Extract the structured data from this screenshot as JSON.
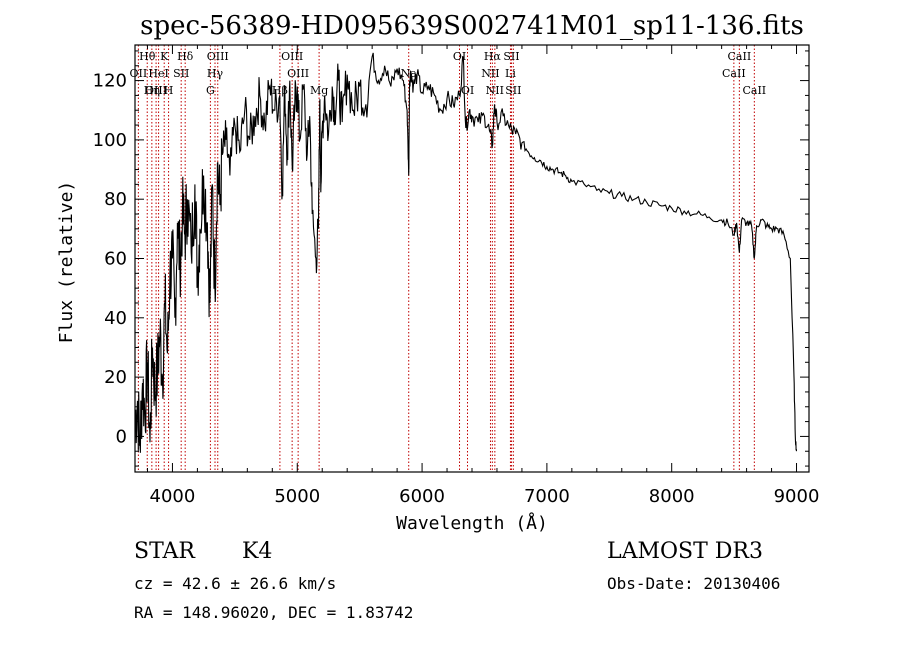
{
  "chart_data": {
    "type": "line",
    "title": "spec-56389-HD095639S002741M01_sp11-136.fits",
    "xlabel": "Wavelength (Å)",
    "ylabel": "Flux (relative)",
    "xlim": [
      3700,
      9100
    ],
    "ylim": [
      -12,
      132
    ],
    "xticks": [
      4000,
      5000,
      6000,
      7000,
      8000,
      9000
    ],
    "yticks": [
      0,
      20,
      40,
      60,
      80,
      100,
      120
    ],
    "series": [
      {
        "name": "flux",
        "x": [
          3700,
          3720,
          3740,
          3760,
          3780,
          3800,
          3820,
          3840,
          3860,
          3880,
          3900,
          3920,
          3940,
          3960,
          3980,
          4000,
          4020,
          4040,
          4060,
          4080,
          4100,
          4120,
          4150,
          4180,
          4200,
          4220,
          4250,
          4280,
          4300,
          4320,
          4340,
          4360,
          4380,
          4400,
          4430,
          4460,
          4500,
          4540,
          4580,
          4620,
          4660,
          4700,
          4740,
          4780,
          4820,
          4860,
          4880,
          4900,
          4920,
          4940,
          4960,
          4980,
          5000,
          5020,
          5050,
          5080,
          5100,
          5120,
          5150,
          5170,
          5180,
          5190,
          5200,
          5220,
          5250,
          5280,
          5300,
          5330,
          5360,
          5400,
          5450,
          5500,
          5550,
          5600,
          5650,
          5700,
          5750,
          5800,
          5850,
          5880,
          5893,
          5900,
          5910,
          5930,
          5960,
          6000,
          6050,
          6100,
          6150,
          6200,
          6250,
          6300,
          6330,
          6350,
          6380,
          6400,
          6450,
          6500,
          6540,
          6563,
          6580,
          6600,
          6650,
          6700,
          6750,
          6800,
          6850,
          6900,
          6950,
          7000,
          7050,
          7100,
          7150,
          7200,
          7300,
          7400,
          7500,
          7600,
          7700,
          7800,
          7900,
          8000,
          8100,
          8200,
          8300,
          8400,
          8450,
          8498,
          8520,
          8542,
          8560,
          8600,
          8640,
          8662,
          8680,
          8720,
          8760,
          8800,
          8850,
          8900,
          8950,
          8980,
          8990,
          9000
        ],
        "values": [
          5,
          12,
          -3,
          18,
          8,
          25,
          -2,
          30,
          15,
          22,
          35,
          20,
          45,
          28,
          55,
          60,
          40,
          72,
          58,
          75,
          68,
          80,
          62,
          85,
          55,
          70,
          88,
          72,
          45,
          85,
          50,
          92,
          78,
          95,
          100,
          88,
          105,
          96,
          110,
          100,
          108,
          115,
          105,
          118,
          110,
          115,
          82,
          118,
          95,
          120,
          90,
          112,
          118,
          100,
          118,
          95,
          108,
          75,
          60,
          70,
          112,
          85,
          104,
          115,
          102,
          118,
          110,
          120,
          106,
          122,
          110,
          118,
          112,
          128,
          120,
          125,
          118,
          124,
          120,
          110,
          88,
          120,
          123,
          118,
          122,
          116,
          118,
          115,
          110,
          114,
          112,
          115,
          128,
          104,
          110,
          108,
          106,
          108,
          103,
          98,
          112,
          106,
          108,
          104,
          102,
          99,
          96,
          94,
          93,
          91,
          90,
          89,
          88,
          86,
          85,
          83,
          82,
          81,
          80,
          79,
          78,
          77,
          76,
          75,
          74,
          73,
          72,
          68,
          72,
          62,
          73,
          72,
          71,
          60,
          71,
          73,
          71,
          70,
          70,
          68,
          60,
          20,
          0,
          -5
        ]
      }
    ],
    "spectral_lines": [
      {
        "label": "Hθ",
        "x": 3798,
        "row": 0
      },
      {
        "label": "OII",
        "x": 3727,
        "row": 1
      },
      {
        "label": "OIII",
        "x": 3869,
        "row": 2
      },
      {
        "label": "K",
        "x": 3934,
        "row": 0
      },
      {
        "label": "HeI",
        "x": 3889,
        "row": 1
      },
      {
        "label": "Hη",
        "x": 3835,
        "row": 2
      },
      {
        "label": "SII",
        "x": 4070,
        "row": 1
      },
      {
        "label": "H",
        "x": 3969,
        "row": 2
      },
      {
        "label": "Hδ",
        "x": 4102,
        "row": 0
      },
      {
        "label": "OIII",
        "x": 4363,
        "row": 0
      },
      {
        "label": "Hγ",
        "x": 4341,
        "row": 1
      },
      {
        "label": "G",
        "x": 4304,
        "row": 2
      },
      {
        "label": "OIII",
        "x": 4959,
        "row": 0
      },
      {
        "label": "OIII",
        "x": 5007,
        "row": 1
      },
      {
        "label": "Hβ",
        "x": 4861,
        "row": 2
      },
      {
        "label": "Mg",
        "x": 5175,
        "row": 2
      },
      {
        "label": "Na",
        "x": 5893,
        "row": 1
      },
      {
        "label": "OI",
        "x": 6300,
        "row": 0
      },
      {
        "label": "OI",
        "x": 6364,
        "row": 2
      },
      {
        "label": "Hα",
        "x": 6563,
        "row": 0
      },
      {
        "label": "SII",
        "x": 6716,
        "row": 0
      },
      {
        "label": "NII",
        "x": 6548,
        "row": 1
      },
      {
        "label": "Li",
        "x": 6708,
        "row": 1
      },
      {
        "label": "NII",
        "x": 6583,
        "row": 2
      },
      {
        "label": "SII",
        "x": 6731,
        "row": 2
      },
      {
        "label": "CaII",
        "x": 8498,
        "row": 1
      },
      {
        "label": "CaII",
        "x": 8542,
        "row": 0
      },
      {
        "label": "CaII",
        "x": 8662,
        "row": 2
      }
    ]
  },
  "info": {
    "object_class": "STAR",
    "subclass": "K4",
    "survey": "LAMOST DR3",
    "cz": "cz = 42.6 ± 26.6 km/s",
    "obs_date": "Obs-Date: 20130406",
    "coords": "RA = 148.96020, DEC =    1.83742"
  }
}
